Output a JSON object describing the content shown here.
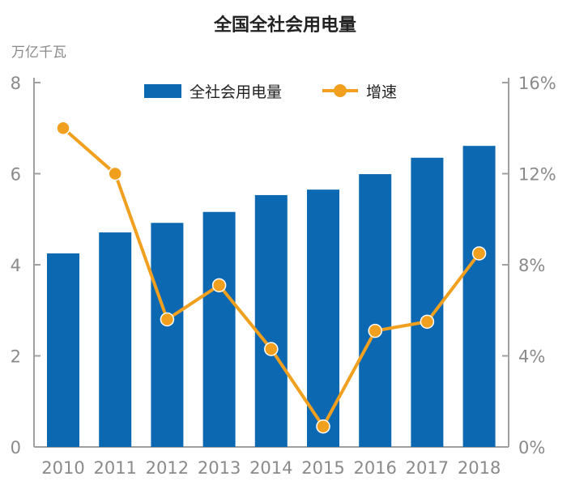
{
  "chart_data": {
    "type": "bar+line",
    "title": "全国全社会用电量",
    "ylabel": "万亿千瓦",
    "categories": [
      "2010",
      "2011",
      "2012",
      "2013",
      "2014",
      "2015",
      "2016",
      "2017",
      "2018"
    ],
    "series": [
      {
        "name": "全社会用电量",
        "type": "bar",
        "axis": "left",
        "color": "#0d68b2",
        "values": [
          4.25,
          4.71,
          4.92,
          5.16,
          5.53,
          5.65,
          5.99,
          6.35,
          6.61
        ]
      },
      {
        "name": "增速",
        "type": "line",
        "axis": "right",
        "color": "#f0a01e",
        "values": [
          14.0,
          12.0,
          5.6,
          7.1,
          4.3,
          0.9,
          5.1,
          5.5,
          8.5
        ]
      }
    ],
    "ylim": [
      0,
      8
    ],
    "yticks": [
      "0",
      "2",
      "4",
      "6",
      "8"
    ],
    "y2lim": [
      0,
      16
    ],
    "y2ticks": [
      "0%",
      "4%",
      "8%",
      "12%",
      "16%"
    ],
    "legend": "top-center",
    "grid": false
  }
}
